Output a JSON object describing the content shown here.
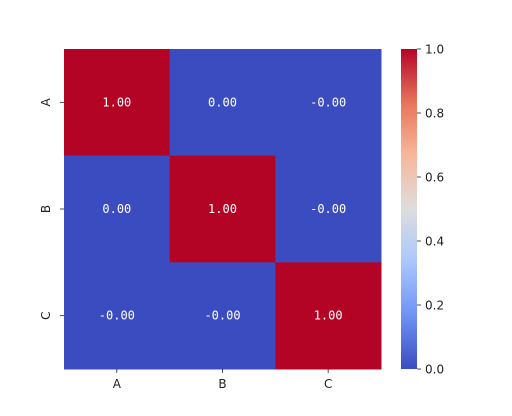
{
  "chart_data": {
    "type": "heatmap",
    "title": "",
    "xlabel": "",
    "ylabel": "",
    "x_categories": [
      "A",
      "B",
      "C"
    ],
    "y_categories": [
      "A",
      "B",
      "C"
    ],
    "values": [
      [
        1.0,
        0.0,
        -0.0
      ],
      [
        0.0,
        1.0,
        -0.0
      ],
      [
        -0.0,
        -0.0,
        1.0
      ]
    ],
    "cell_labels": [
      [
        "1.00",
        "0.00",
        "-0.00"
      ],
      [
        "0.00",
        "1.00",
        "-0.00"
      ],
      [
        "-0.00",
        "-0.00",
        "1.00"
      ]
    ],
    "colormap": "coolwarm",
    "colormap_stops": [
      "#3b4cc0",
      "#6f92f3",
      "#aac7fd",
      "#dddddd",
      "#f7b89c",
      "#e7745b",
      "#b40426"
    ],
    "colorbar": {
      "range": [
        0.0,
        1.0
      ],
      "ticks": [
        0.0,
        0.2,
        0.4,
        0.6,
        0.8,
        1.0
      ],
      "tick_labels": [
        "0.0",
        "0.2",
        "0.4",
        "0.6",
        "0.8",
        "1.0"
      ]
    },
    "annotation_color": "#ffffff"
  }
}
